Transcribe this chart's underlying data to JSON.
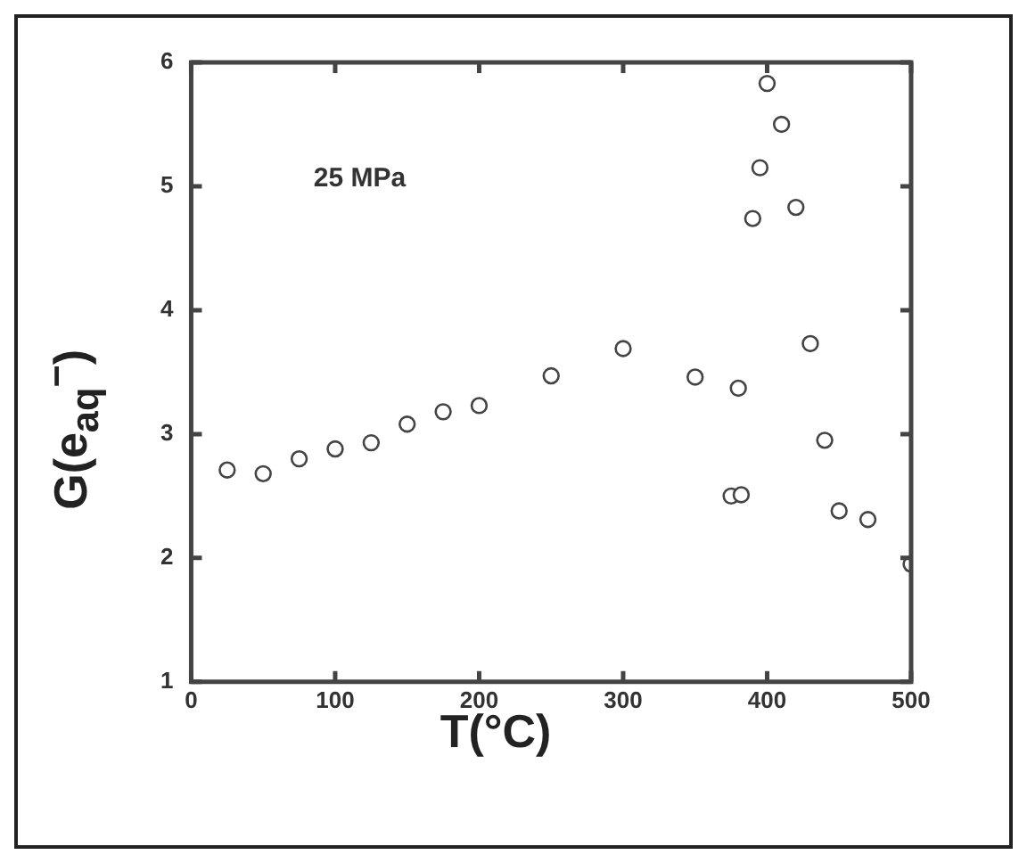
{
  "chart_data": {
    "type": "scatter",
    "xlabel": "T(°C)",
    "ylabel": "G(e$_{aq}$$^{−}$)",
    "annotations": [
      "25 MPa"
    ],
    "marker": "circle",
    "grid": false,
    "legend": false,
    "x": [
      25,
      50,
      75,
      100,
      125,
      150,
      175,
      200,
      250,
      300,
      350,
      380,
      375,
      382,
      390,
      395,
      400,
      410,
      420,
      430,
      440,
      450,
      470,
      500
    ],
    "series": [
      {
        "color": "#444444",
        "values": [
          2.71,
          2.68,
          2.8,
          2.88,
          2.93,
          3.08,
          3.18,
          3.23,
          3.47,
          3.69,
          3.46,
          3.37,
          2.5,
          2.51,
          4.74,
          5.15,
          5.83,
          5.5,
          4.83,
          3.73,
          2.95,
          2.38,
          2.31,
          1.95
        ]
      }
    ],
    "xlim": [
      0,
      500
    ],
    "xticks": [
      0,
      100,
      200,
      300,
      400,
      500
    ],
    "ylim": [
      1,
      6
    ],
    "yticks": [
      1,
      2,
      3,
      4,
      5,
      6
    ]
  }
}
